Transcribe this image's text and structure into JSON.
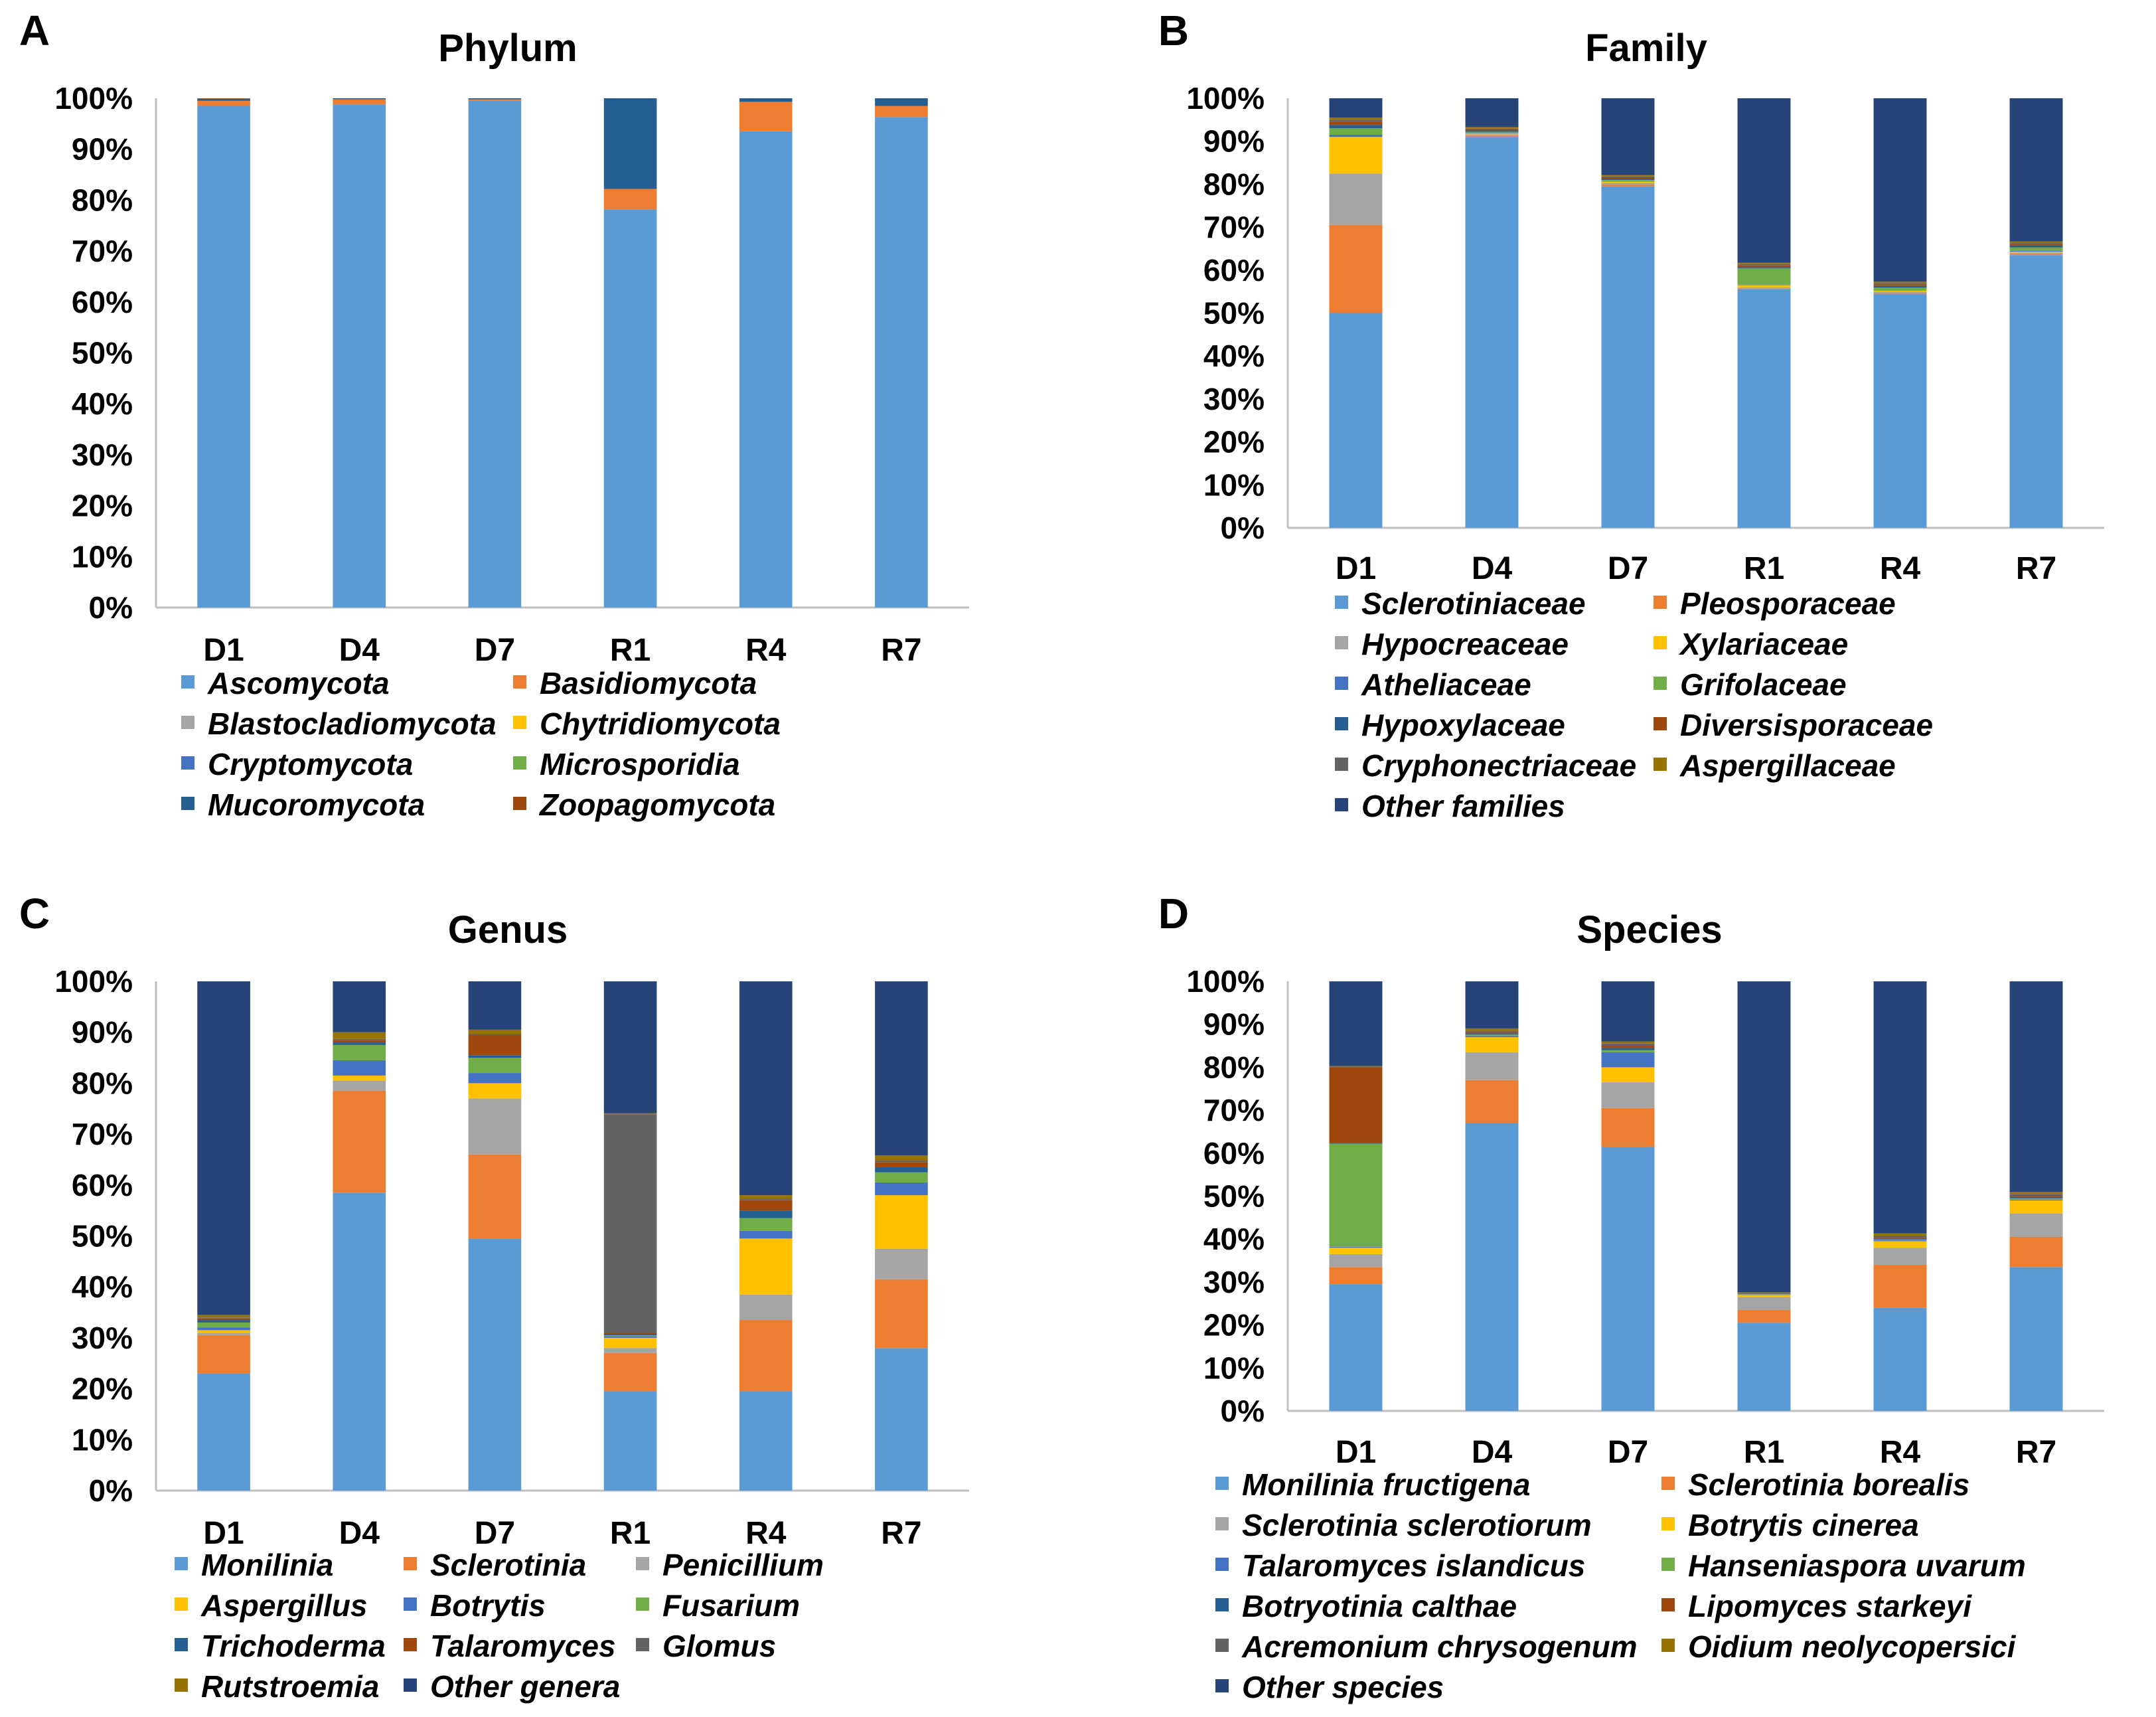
{
  "chart_data": [
    {
      "panel": "A",
      "type": "bar",
      "stacked": true,
      "title": "Phylum",
      "categories": [
        "D1",
        "D4",
        "D7",
        "R1",
        "R4",
        "R7"
      ],
      "ylim": [
        0,
        100
      ],
      "yticks": [
        "0%",
        "10%",
        "20%",
        "30%",
        "40%",
        "50%",
        "60%",
        "70%",
        "80%",
        "90%",
        "100%"
      ],
      "grid": false,
      "legend_position": "bottom",
      "series": [
        {
          "name": "Ascomycota",
          "color": "#5b9bd5",
          "values": [
            98.5,
            98.8,
            99.5,
            78.2,
            93.5,
            96.3
          ]
        },
        {
          "name": "Basidiomycota",
          "color": "#ed7d31",
          "values": [
            1.0,
            1.0,
            0.3,
            4.0,
            5.8,
            2.2
          ]
        },
        {
          "name": "Blastocladiomycota",
          "color": "#a5a5a5",
          "values": [
            0.0,
            0.0,
            0.0,
            0.0,
            0.0,
            0.0
          ]
        },
        {
          "name": "Chytridiomycota",
          "color": "#ffc000",
          "values": [
            0.0,
            0.0,
            0.0,
            0.0,
            0.0,
            0.0
          ]
        },
        {
          "name": "Cryptomycota",
          "color": "#4472c4",
          "values": [
            0.0,
            0.0,
            0.0,
            0.0,
            0.0,
            0.0
          ]
        },
        {
          "name": "Microsporidia",
          "color": "#70ad47",
          "values": [
            0.0,
            0.0,
            0.0,
            0.0,
            0.0,
            0.0
          ]
        },
        {
          "name": "Mucoromycota",
          "color": "#255e91",
          "values": [
            0.4,
            0.2,
            0.2,
            17.8,
            0.7,
            1.5
          ]
        },
        {
          "name": "Zoopagomycota",
          "color": "#9e480e",
          "values": [
            0.1,
            0.0,
            0.0,
            0.0,
            0.0,
            0.0
          ]
        }
      ]
    },
    {
      "panel": "B",
      "type": "bar",
      "stacked": true,
      "title": "Family",
      "categories": [
        "D1",
        "D4",
        "D7",
        "R1",
        "R4",
        "R7"
      ],
      "ylim": [
        0,
        100
      ],
      "yticks": [
        "0%",
        "10%",
        "20%",
        "30%",
        "40%",
        "50%",
        "60%",
        "70%",
        "80%",
        "90%",
        "100%"
      ],
      "grid": false,
      "legend_position": "bottom",
      "series": [
        {
          "name": "Sclerotiniaceae",
          "color": "#5b9bd5",
          "values": [
            50.0,
            91.0,
            79.5,
            55.5,
            54.5,
            63.5
          ]
        },
        {
          "name": "Pleosporaceae",
          "color": "#ed7d31",
          "values": [
            20.5,
            0.3,
            0.4,
            0.2,
            0.2,
            0.3
          ]
        },
        {
          "name": "Hypocreaceae",
          "color": "#a5a5a5",
          "values": [
            12.0,
            0.3,
            0.4,
            0.3,
            0.3,
            0.3
          ]
        },
        {
          "name": "Xylariaceae",
          "color": "#ffc000",
          "values": [
            8.5,
            0.2,
            0.3,
            0.5,
            0.2,
            0.2
          ]
        },
        {
          "name": "Atheliaceae",
          "color": "#4472c4",
          "values": [
            0.5,
            0.1,
            0.1,
            0.1,
            0.1,
            0.2
          ]
        },
        {
          "name": "Grifolaceae",
          "color": "#70ad47",
          "values": [
            1.5,
            0.3,
            0.3,
            3.8,
            0.6,
            0.8
          ]
        },
        {
          "name": "Hypoxylaceae",
          "color": "#255e91",
          "values": [
            0.8,
            0.3,
            0.3,
            0.3,
            0.4,
            0.4
          ]
        },
        {
          "name": "Diversisporaceae",
          "color": "#9e480e",
          "values": [
            0.7,
            0.3,
            0.3,
            0.4,
            0.4,
            0.4
          ]
        },
        {
          "name": "Cryphonectriaceae",
          "color": "#636363",
          "values": [
            0.5,
            0.2,
            0.2,
            0.3,
            0.3,
            0.3
          ]
        },
        {
          "name": "Aspergillaceae",
          "color": "#997300",
          "values": [
            0.5,
            0.3,
            0.3,
            0.3,
            0.3,
            0.3
          ]
        },
        {
          "name": "Other families",
          "color": "#264478",
          "values": [
            4.5,
            6.7,
            17.9,
            38.3,
            42.7,
            33.3
          ]
        }
      ]
    },
    {
      "panel": "C",
      "type": "bar",
      "stacked": true,
      "title": "Genus",
      "categories": [
        "D1",
        "D4",
        "D7",
        "R1",
        "R4",
        "R7"
      ],
      "ylim": [
        0,
        100
      ],
      "yticks": [
        "0%",
        "10%",
        "20%",
        "30%",
        "40%",
        "50%",
        "60%",
        "70%",
        "80%",
        "90%",
        "100%"
      ],
      "grid": false,
      "legend_position": "bottom",
      "series": [
        {
          "name": "Monilinia",
          "color": "#5b9bd5",
          "values": [
            23.0,
            58.5,
            49.5,
            19.5,
            19.5,
            28.0
          ]
        },
        {
          "name": "Sclerotinia",
          "color": "#ed7d31",
          "values": [
            7.5,
            20.0,
            16.5,
            7.5,
            14.0,
            13.5
          ]
        },
        {
          "name": "Penicillium",
          "color": "#a5a5a5",
          "values": [
            0.5,
            2.0,
            11.0,
            1.0,
            5.0,
            6.0
          ]
        },
        {
          "name": "Aspergillus",
          "color": "#ffc000",
          "values": [
            0.5,
            1.0,
            3.0,
            2.0,
            11.0,
            10.5
          ]
        },
        {
          "name": "Botrytis",
          "color": "#4472c4",
          "values": [
            0.5,
            3.0,
            2.0,
            0.3,
            1.5,
            2.5
          ]
        },
        {
          "name": "Fusarium",
          "color": "#70ad47",
          "values": [
            1.0,
            3.0,
            3.0,
            0.2,
            2.5,
            2.0
          ]
        },
        {
          "name": "Trichoderma",
          "color": "#255e91",
          "values": [
            0.5,
            0.5,
            0.5,
            0.2,
            1.5,
            1.0
          ]
        },
        {
          "name": "Talaromyces",
          "color": "#9e480e",
          "values": [
            0.3,
            0.5,
            4.0,
            0.2,
            2.0,
            1.0
          ]
        },
        {
          "name": "Glomus",
          "color": "#636363",
          "values": [
            0.2,
            0.2,
            0.2,
            43.0,
            0.3,
            0.3
          ]
        },
        {
          "name": "Rutstroemia",
          "color": "#997300",
          "values": [
            0.5,
            1.3,
            0.8,
            0.2,
            0.7,
            1.0
          ]
        },
        {
          "name": "Other genera",
          "color": "#264478",
          "values": [
            65.5,
            10.0,
            9.5,
            25.9,
            42.0,
            34.2
          ]
        }
      ]
    },
    {
      "panel": "D",
      "type": "bar",
      "stacked": true,
      "title": "Species",
      "categories": [
        "D1",
        "D4",
        "D7",
        "R1",
        "R4",
        "R7"
      ],
      "ylim": [
        0,
        100
      ],
      "yticks": [
        "0%",
        "10%",
        "20%",
        "30%",
        "40%",
        "50%",
        "60%",
        "70%",
        "80%",
        "90%",
        "100%"
      ],
      "grid": false,
      "legend_position": "bottom",
      "series": [
        {
          "name": "Monilinia fructigena",
          "color": "#5b9bd5",
          "values": [
            29.5,
            67.0,
            61.5,
            20.5,
            24.0,
            33.5
          ]
        },
        {
          "name": "Sclerotinia borealis",
          "color": "#ed7d31",
          "values": [
            4.0,
            10.0,
            9.0,
            3.0,
            10.0,
            7.0
          ]
        },
        {
          "name": "Sclerotinia sclerotiorum",
          "color": "#a5a5a5",
          "values": [
            3.0,
            6.5,
            6.0,
            3.0,
            4.0,
            5.5
          ]
        },
        {
          "name": "Botrytis cinerea",
          "color": "#ffc000",
          "values": [
            1.5,
            3.5,
            3.5,
            0.5,
            1.5,
            3.0
          ]
        },
        {
          "name": "Talaromyces islandicus",
          "color": "#4472c4",
          "values": [
            0.2,
            0.3,
            3.5,
            0.1,
            0.2,
            0.2
          ]
        },
        {
          "name": "Hanseniaspora uvarum",
          "color": "#70ad47",
          "values": [
            24.0,
            0.3,
            0.5,
            0.1,
            0.2,
            0.3
          ]
        },
        {
          "name": "Botryotinia calthae",
          "color": "#255e91",
          "values": [
            0.2,
            0.3,
            0.5,
            0.1,
            0.2,
            0.3
          ]
        },
        {
          "name": "Lipomyces starkeyi",
          "color": "#9e480e",
          "values": [
            17.6,
            0.3,
            0.5,
            0.1,
            0.2,
            0.2
          ]
        },
        {
          "name": "Acremonium chrysogenum",
          "color": "#636363",
          "values": [
            0.2,
            0.3,
            0.5,
            0.1,
            0.5,
            0.5
          ]
        },
        {
          "name": "Oidium neolycopersici",
          "color": "#997300",
          "values": [
            0.1,
            0.5,
            0.5,
            0.1,
            0.5,
            0.5
          ]
        },
        {
          "name": "Other species",
          "color": "#264478",
          "values": [
            19.7,
            11.0,
            14.0,
            72.4,
            58.7,
            49.0
          ]
        }
      ]
    }
  ]
}
